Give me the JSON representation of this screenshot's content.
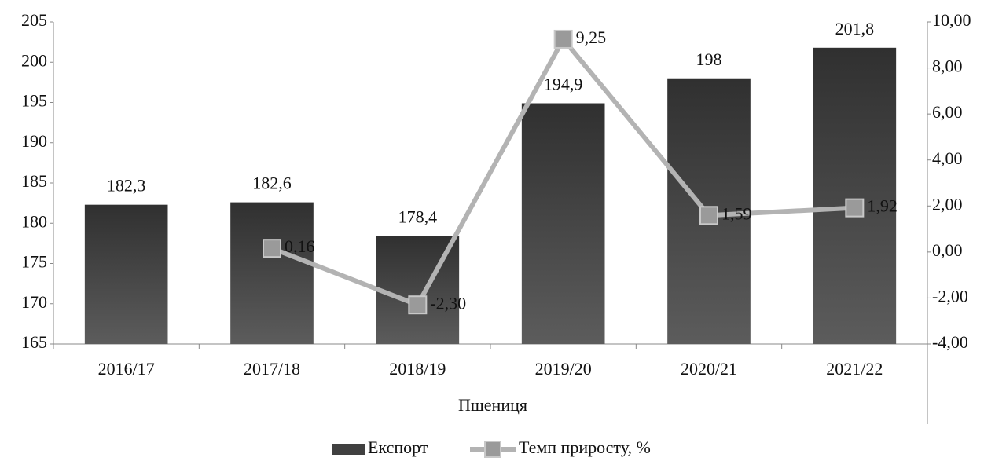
{
  "chart_data": {
    "type": "bar-line",
    "x_label": "Пшениця",
    "categories": [
      "2016/17",
      "2017/18",
      "2018/19",
      "2019/20",
      "2020/21",
      "2021/22"
    ],
    "series": [
      {
        "name": "Експорт",
        "type": "bar",
        "color": "#404040",
        "values": [
          182.3,
          182.6,
          178.4,
          194.9,
          198,
          201.8
        ],
        "value_labels": [
          "182,3",
          "182,6",
          "178,4",
          "194,9",
          "198",
          "201,8"
        ]
      },
      {
        "name": "Темп приросту, %",
        "type": "line",
        "axis": "y2",
        "color": "#b3b3b3",
        "values": [
          null,
          0.16,
          -2.3,
          9.25,
          1.59,
          1.92
        ],
        "value_labels": [
          null,
          "0,16",
          "-2,30",
          "9,25",
          "1,59",
          "1,92"
        ]
      }
    ],
    "ylim": [
      165,
      205
    ],
    "yticks": [
      165,
      170,
      175,
      180,
      185,
      190,
      195,
      200,
      205
    ],
    "y2lim": [
      -4,
      10
    ],
    "y2ticks": [
      {
        "value": -4,
        "label": "-4,00"
      },
      {
        "value": -2,
        "label": "-2,00"
      },
      {
        "value": 0,
        "label": "0,00"
      },
      {
        "value": 2,
        "label": "2,00"
      },
      {
        "value": 4,
        "label": "4,00"
      },
      {
        "value": 6,
        "label": "6,00"
      },
      {
        "value": 8,
        "label": "8,00"
      },
      {
        "value": 10,
        "label": "10,00"
      }
    ],
    "legend": "bottom",
    "grid": false
  }
}
